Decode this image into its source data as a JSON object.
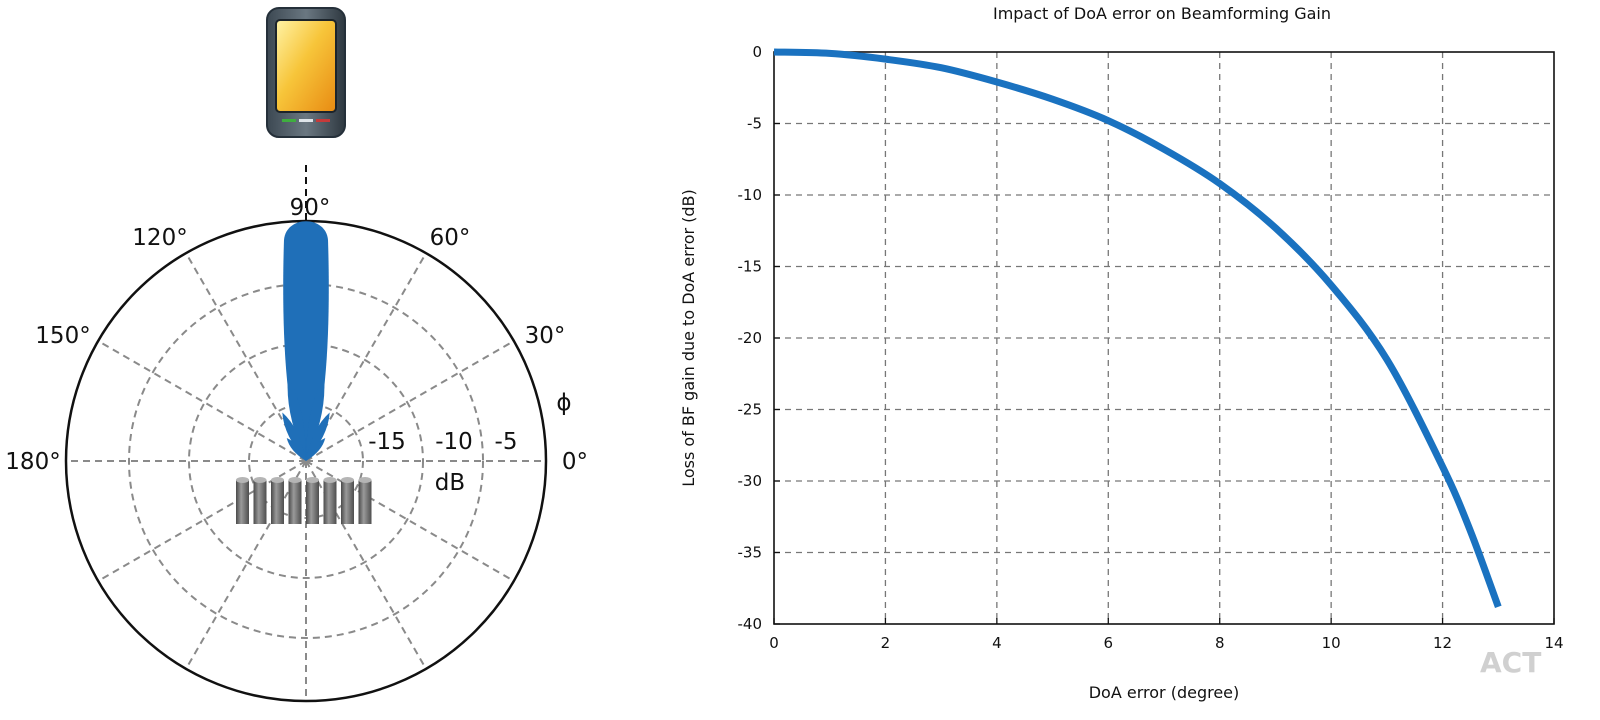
{
  "polar": {
    "angle_labels": [
      {
        "deg": 90,
        "text": "90°"
      },
      {
        "deg": 120,
        "text": "120°"
      },
      {
        "deg": 60,
        "text": "60°"
      },
      {
        "deg": 150,
        "text": "150°"
      },
      {
        "deg": 30,
        "text": "30°"
      },
      {
        "deg": 180,
        "text": "180°"
      },
      {
        "deg": 0,
        "text": "0°"
      }
    ],
    "radial_labels": [
      "-15",
      "-10",
      "-5"
    ],
    "radial_unit": "dB",
    "angle_symbol": "ϕ",
    "colors": {
      "beam": "#1f6fb8",
      "grid": "#8a8a8a",
      "antenna": "#666666"
    }
  },
  "chart_data": {
    "type": "line",
    "title": "Impact of DoA error on Beamforming Gain",
    "xlabel": "DoA error (degree)",
    "ylabel": "Loss of BF gain due to DoA error (dB)",
    "xlim": [
      0,
      14
    ],
    "ylim": [
      -40,
      0
    ],
    "xticks": [
      "0",
      "2",
      "4",
      "6",
      "8",
      "10",
      "12",
      "14"
    ],
    "yticks": [
      "0",
      "-5",
      "-10",
      "-15",
      "-20",
      "-25",
      "-30",
      "-35",
      "-40"
    ],
    "grid": true,
    "series": [
      {
        "color": "#1a72c0",
        "x": [
          0,
          1,
          2,
          3,
          4,
          5,
          6,
          7,
          8,
          9,
          10,
          11,
          12,
          12.5,
          13
        ],
        "y": [
          0,
          -0.1,
          -0.5,
          -1.1,
          -2.1,
          -3.3,
          -4.8,
          -6.8,
          -9.2,
          -12.3,
          -16.3,
          -21.5,
          -29.0,
          -33.5,
          -38.8
        ]
      }
    ]
  },
  "watermark": "ACT"
}
